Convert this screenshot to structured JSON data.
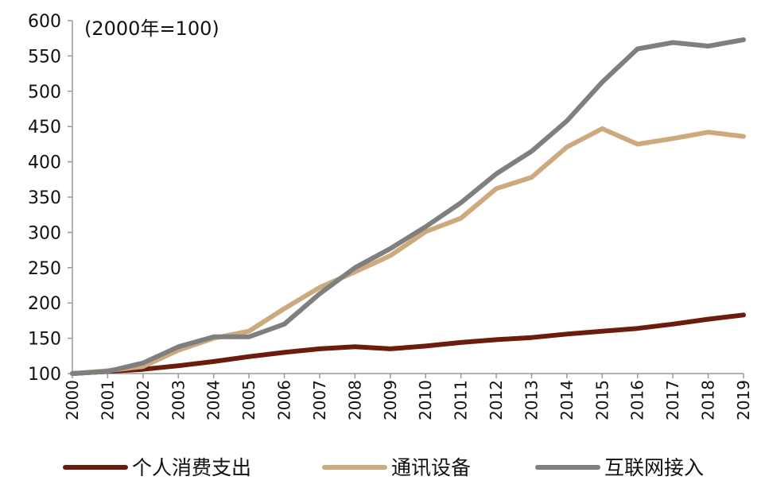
{
  "chart_data": {
    "type": "line",
    "annotation": "(2000年=100)",
    "categories": [
      "2000",
      "2001",
      "2002",
      "2003",
      "2004",
      "2005",
      "2006",
      "2007",
      "2008",
      "2009",
      "2010",
      "2011",
      "2012",
      "2013",
      "2014",
      "2015",
      "2016",
      "2017",
      "2018",
      "2019"
    ],
    "ylim": [
      100,
      600
    ],
    "yticks": [
      100,
      150,
      200,
      250,
      300,
      350,
      400,
      450,
      500,
      550,
      600
    ],
    "grid": false,
    "legend_position": "bottom",
    "series": [
      {
        "name": "个人消费支出",
        "color": "#6B1C0C",
        "values": [
          100,
          103,
          106,
          111,
          117,
          124,
          130,
          135,
          138,
          135,
          139,
          144,
          148,
          151,
          156,
          160,
          164,
          170,
          177,
          183
        ]
      },
      {
        "name": "通讯设备",
        "color": "#CDAA7D",
        "values": [
          100,
          104,
          110,
          133,
          150,
          160,
          192,
          222,
          244,
          267,
          301,
          320,
          362,
          378,
          421,
          447,
          425,
          433,
          442,
          436
        ]
      },
      {
        "name": "互联网接入",
        "color": "#7F7F7F",
        "values": [
          100,
          103,
          115,
          138,
          152,
          152,
          170,
          213,
          250,
          277,
          308,
          342,
          383,
          415,
          458,
          513,
          560,
          569,
          564,
          573
        ]
      }
    ]
  }
}
